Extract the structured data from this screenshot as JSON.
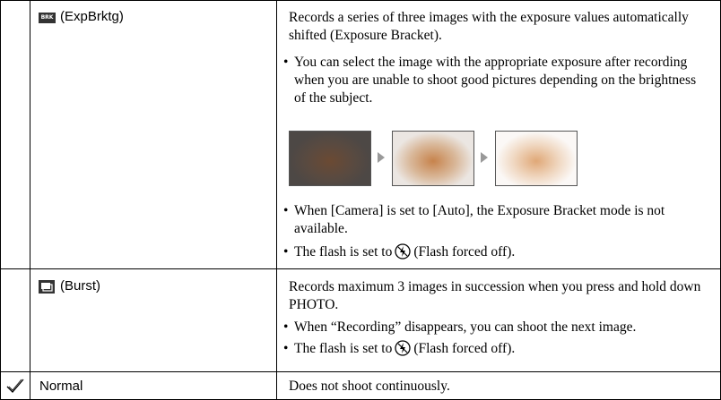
{
  "table": {
    "rows": [
      {
        "icon_label": "BRK",
        "mode": "(ExpBrktg)",
        "description": "Records a series of three images with the exposure values automatically shifted (Exposure Bracket).",
        "notes": [
          "You can select the image with the appropriate exposure after recording when you are unable to shoot good pictures depending on the brightness of the subject.",
          "When [Camera] is set to [Auto], the Exposure Bracket mode is not available."
        ],
        "flash_note": {
          "before": "The flash is set to",
          "after": "(Flash forced off)."
        }
      },
      {
        "mode": "(Burst)",
        "description": "Records maximum 3 images in succession when you press and hold down PHOTO.",
        "notes": [
          "When “Recording” disappears, you can shoot the next image."
        ],
        "flash_note": {
          "before": "The flash is set to",
          "after": "(Flash forced off)."
        }
      },
      {
        "mode": "Normal",
        "description": "Does not shoot continuously."
      }
    ]
  }
}
